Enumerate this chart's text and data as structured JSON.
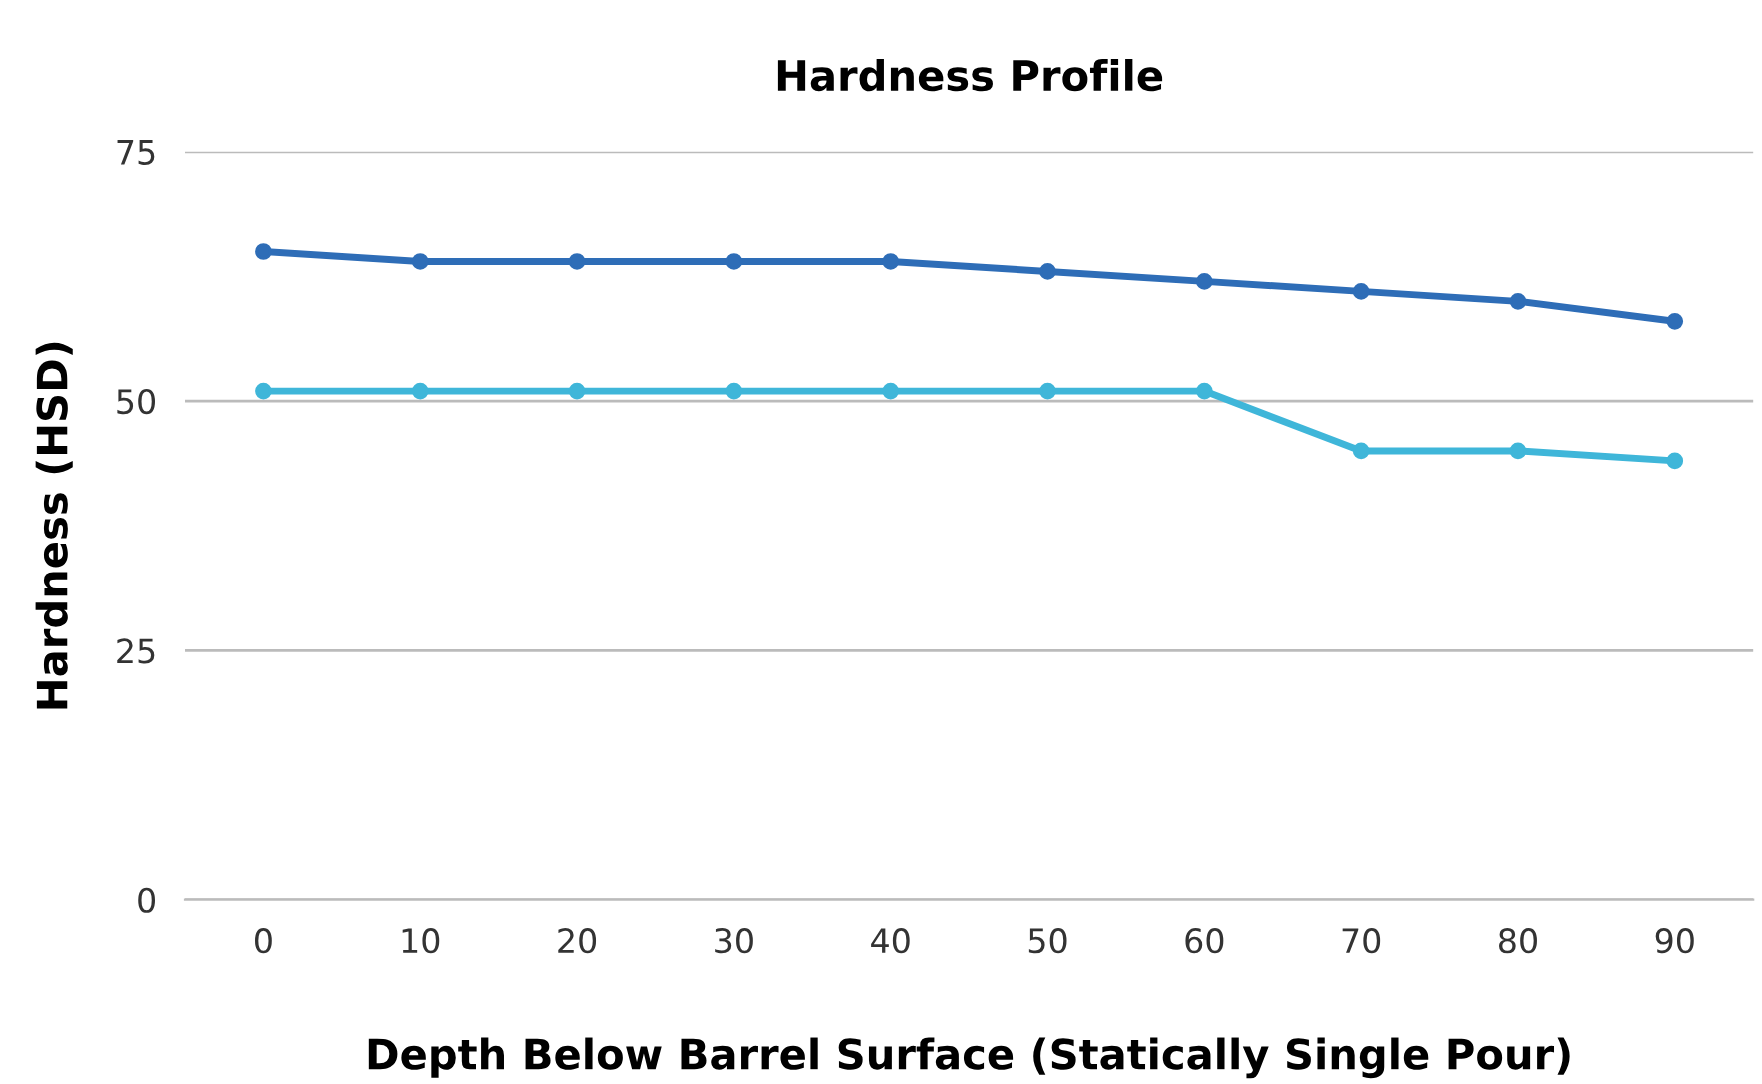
{
  "chart_data": {
    "type": "line",
    "title": "Hardness Profile",
    "xlabel": "Depth Below Barrel Surface (Statically Single Pour)",
    "ylabel": "Hardness (HSD)",
    "categories": [
      "0",
      "10",
      "20",
      "30",
      "40",
      "50",
      "60",
      "70",
      "80",
      "90"
    ],
    "series": [
      {
        "color": "#2e6db7",
        "values": [
          65,
          64,
          64,
          64,
          64,
          63,
          62,
          61,
          60,
          58
        ]
      },
      {
        "color": "#3fb6d9",
        "values": [
          51,
          51,
          51,
          51,
          51,
          51,
          51,
          45,
          45,
          44
        ]
      }
    ],
    "ylim": [
      0,
      75
    ],
    "yticks": [
      0,
      25,
      50,
      75
    ],
    "grid": "y",
    "marker": "circle",
    "line_style": "solid"
  }
}
